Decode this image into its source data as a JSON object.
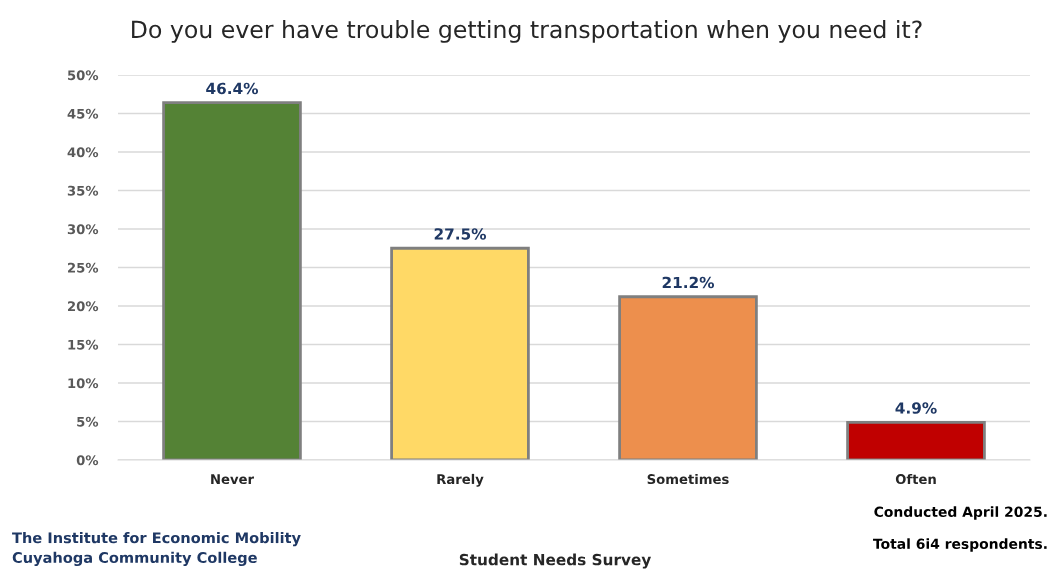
{
  "chart_data": {
    "type": "bar",
    "title": "Do you ever have trouble getting transportation when you need it?",
    "categories": [
      "Never",
      "Rarely",
      "Sometimes",
      "Often"
    ],
    "values": [
      46.4,
      27.5,
      21.2,
      4.9
    ],
    "colors": [
      "#548235",
      "#ffd966",
      "#ed8f4d",
      "#c00000"
    ],
    "value_labels": [
      "46.4%",
      "27.5%",
      "21.2%",
      "4.9%"
    ],
    "ylim": [
      0,
      50
    ],
    "yticks": [
      {
        "value": 0,
        "label": "0%"
      },
      {
        "value": 5,
        "label": "5%"
      },
      {
        "value": 10,
        "label": "10%"
      },
      {
        "value": 15,
        "label": "15%"
      },
      {
        "value": 20,
        "label": "20%"
      },
      {
        "value": 25,
        "label": "25%"
      },
      {
        "value": 30,
        "label": "30%"
      },
      {
        "value": 35,
        "label": "35%"
      },
      {
        "value": 40,
        "label": "40%"
      },
      {
        "value": 45,
        "label": "45%"
      },
      {
        "value": 50,
        "label": "50%"
      }
    ],
    "grid": "y",
    "xlabel": "Student Needs Survey",
    "annotations": [
      "The Institute for Economic Mobility\nCuyahoga Community College",
      "Conducted April 2025.",
      "Total 6i4 respondents."
    ]
  }
}
